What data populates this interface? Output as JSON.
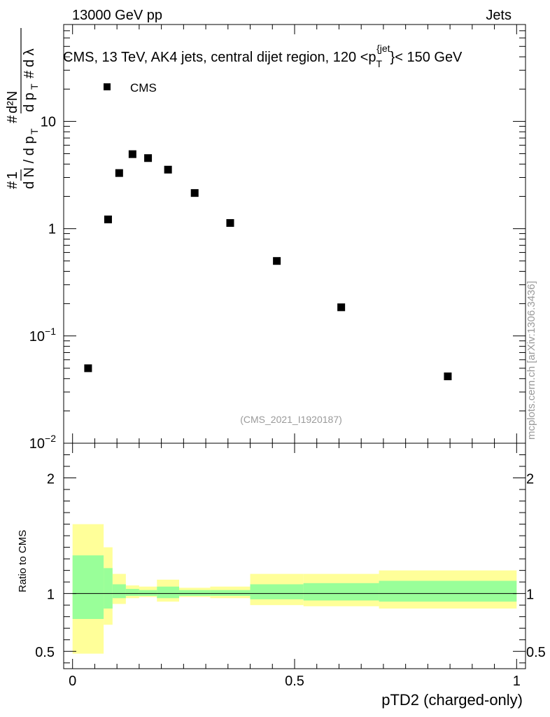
{
  "header": {
    "left": "13000 GeV pp",
    "right": "Jets"
  },
  "watermark": "mcplots.cern.ch [arXiv:1306.3436]",
  "plot_title": "CMS, 13 TeV, AK4 jets, central dijet region, 120 < p_T^{jet} < 150 GeV",
  "analysis_id": "(CMS_2021_I1920187)",
  "legend": {
    "label": "CMS"
  },
  "top_ylabel": "1/(dN/dp_T) d²N/(dp_T dλ)",
  "ratio_ylabel": "Ratio to CMS",
  "xlabel": "pTD2 (charged-only)",
  "colors": {
    "band_outer": "#ffff99",
    "band_inner": "#99ff99",
    "markers": "#000000"
  },
  "chart_data": [
    {
      "type": "scatter",
      "panel": "main",
      "yscale": "log",
      "xlim": [
        -0.02,
        1.02
      ],
      "ylim": [
        0.01,
        80
      ],
      "y_ticklabels": [
        "10^-2",
        "10^-1",
        "1",
        "10"
      ],
      "series": [
        {
          "name": "CMS",
          "x": [
            0.035,
            0.08,
            0.105,
            0.135,
            0.17,
            0.215,
            0.275,
            0.355,
            0.46,
            0.605,
            0.845
          ],
          "y": [
            0.05,
            1.22,
            3.3,
            4.95,
            4.55,
            3.55,
            2.15,
            1.13,
            0.5,
            0.185,
            0.042
          ]
        }
      ]
    },
    {
      "type": "area",
      "panel": "ratio",
      "xlim": [
        -0.02,
        1.02
      ],
      "ylim": [
        0.35,
        2.3
      ],
      "x_ticklabels": [
        "0",
        "0.5",
        "1"
      ],
      "y_ticklabels": [
        "0.5",
        "1",
        "2"
      ],
      "reference_line": 1,
      "bin_edges": [
        0.0,
        0.07,
        0.09,
        0.12,
        0.15,
        0.19,
        0.24,
        0.31,
        0.4,
        0.52,
        0.69,
        1.0
      ],
      "outer_low": [
        0.48,
        0.73,
        0.91,
        0.96,
        0.97,
        0.93,
        0.97,
        0.96,
        0.9,
        0.89,
        0.87
      ],
      "outer_high": [
        1.6,
        1.4,
        1.17,
        1.07,
        1.06,
        1.12,
        1.05,
        1.06,
        1.17,
        1.17,
        1.2
      ],
      "inner_low": [
        0.78,
        0.87,
        0.96,
        0.98,
        0.98,
        0.96,
        0.98,
        0.98,
        0.95,
        0.94,
        0.93
      ],
      "inner_high": [
        1.33,
        1.22,
        1.08,
        1.04,
        1.03,
        1.06,
        1.03,
        1.03,
        1.08,
        1.09,
        1.11
      ]
    }
  ]
}
